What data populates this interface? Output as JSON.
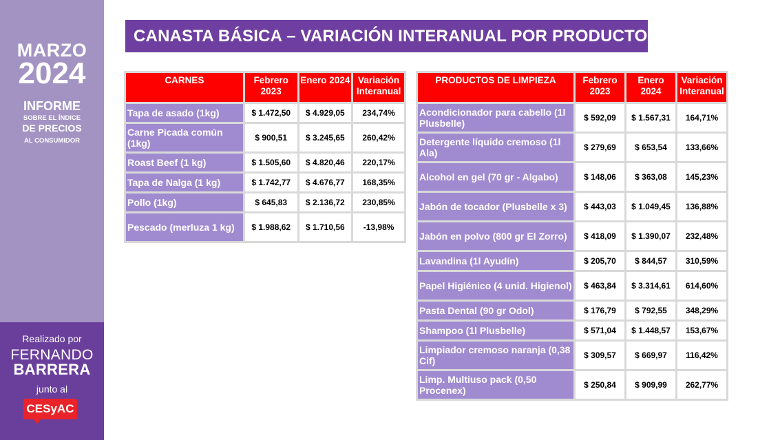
{
  "sidebar": {
    "month": "MARZO",
    "year": "2024",
    "informe": "INFORME",
    "sobre": "SOBRE EL ÍNDICE",
    "precios": "DE PRECIOS",
    "consumidor": "AL CONSUMIDOR",
    "realizado": "Realizado por",
    "author_first": "FERNANDO",
    "author_last": "BARRERA",
    "junto": "junto al",
    "logo": "CESyAC"
  },
  "title": "CANASTA BÁSICA – VARIACIÓN INTERANUAL POR PRODUCTO",
  "carnes": {
    "headers": [
      "CARNES",
      "Febrero 2023",
      "Enero 2024",
      "Variación Interanual"
    ],
    "rows": [
      {
        "producto": "Tapa de asado (1kg)",
        "feb": "$ 1.472,50",
        "ene": "$ 4.929,05",
        "var": "234,74%"
      },
      {
        "producto": "Carne Picada común (1kg)",
        "feb": "$ 900,51",
        "ene": "$ 3.245,65",
        "var": "260,42%"
      },
      {
        "producto": "Roast Beef (1 kg)",
        "feb": "$ 1.505,60",
        "ene": "$ 4.820,46",
        "var": "220,17%"
      },
      {
        "producto": "Tapa de Nalga (1 kg)",
        "feb": "$ 1.742,77",
        "ene": "$ 4.676,77",
        "var": "168,35%"
      },
      {
        "producto": "Pollo (1kg)",
        "feb": "$ 645,83",
        "ene": "$ 2.136,72",
        "var": "230,85%"
      },
      {
        "producto": "Pescado (merluza 1 kg)",
        "feb": "$ 1.988,62",
        "ene": "$ 1.710,56",
        "var": "-13,98%"
      }
    ]
  },
  "limpieza": {
    "headers": [
      "PRODUCTOS DE LIMPIEZA",
      "Febrero 2023",
      "Enero 2024",
      "Variación Interanual"
    ],
    "rows": [
      {
        "producto": "Acondicionador para cabello (1l Plusbelle)",
        "feb": "$ 592,09",
        "ene": "$ 1.567,31",
        "var": "164,71%"
      },
      {
        "producto": "Detergente líquido cremoso (1l Ala)",
        "feb": "$ 279,69",
        "ene": "$ 653,54",
        "var": "133,66%"
      },
      {
        "producto": "Alcohol en gel (70 gr - Algabo)",
        "feb": "$ 148,06",
        "ene": "$ 363,08",
        "var": "145,23%"
      },
      {
        "producto": "Jabón de tocador (Plusbelle x 3)",
        "feb": "$ 443,03",
        "ene": "$ 1.049,45",
        "var": "136,88%"
      },
      {
        "producto": "Jabón en polvo (800 gr El Zorro)",
        "feb": "$ 418,09",
        "ene": "$ 1.390,07",
        "var": "232,48%"
      },
      {
        "producto": "Lavandina (1l Ayudín)",
        "feb": "$ 205,70",
        "ene": "$ 844,57",
        "var": "310,59%"
      },
      {
        "producto": "Papel Higiénico (4 unid. Higienol)",
        "feb": "$ 463,84",
        "ene": "$ 3.314,61",
        "var": "614,60%"
      },
      {
        "producto": "Pasta Dental (90 gr Odol)",
        "feb": "$ 176,79",
        "ene": "$ 792,55",
        "var": "348,29%"
      },
      {
        "producto": "Shampoo (1l Plusbelle)",
        "feb": "$ 571,04",
        "ene": "$ 1.448,57",
        "var": "153,67%"
      },
      {
        "producto": "Limpiador cremoso naranja (0,38 Cif)",
        "feb": "$ 309,57",
        "ene": "$ 669,97",
        "var": "116,42%"
      },
      {
        "producto": "Limp. Multiuso pack (0,50 Procenex)",
        "feb": "$ 250,84",
        "ene": "$ 909,99",
        "var": "262,77%"
      }
    ]
  }
}
